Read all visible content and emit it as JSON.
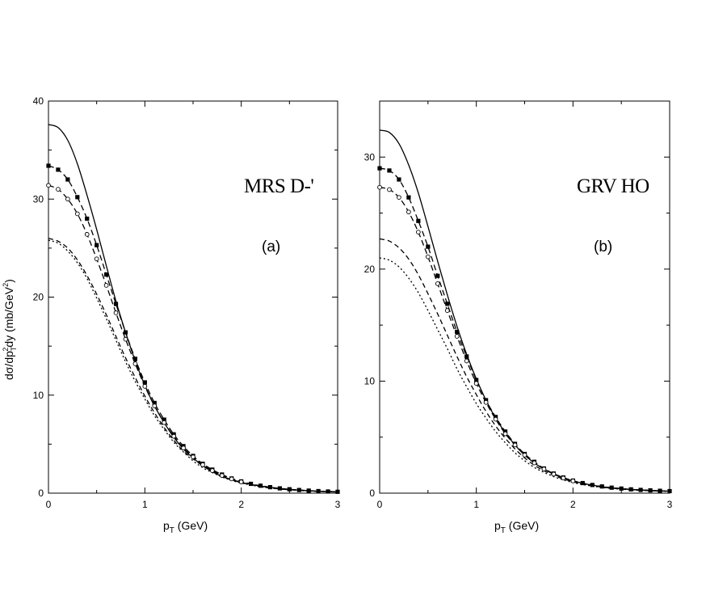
{
  "chart_data": [
    {
      "type": "line",
      "title": "MRS D-'",
      "panel_label": "(a)",
      "xlabel_main": "p",
      "xlabel_sub": "T",
      "xlabel_rest": " (GeV)",
      "ylabel_parts": [
        "dσ/dp",
        "T",
        "2",
        "dy  (mb/GeV",
        "2",
        ")"
      ],
      "xlim": [
        0,
        3
      ],
      "ylim": [
        0,
        40
      ],
      "xticks": [
        0,
        1,
        2,
        3
      ],
      "yticks": [
        0,
        10,
        20,
        30,
        40
      ],
      "x": [
        0,
        0.1,
        0.2,
        0.3,
        0.4,
        0.5,
        0.6,
        0.7,
        0.8,
        0.9,
        1.0,
        1.1,
        1.2,
        1.3,
        1.4,
        1.5,
        1.6,
        1.7,
        1.8,
        1.9,
        2.0,
        2.1,
        2.2,
        2.3,
        2.4,
        2.5,
        2.6,
        2.7,
        2.8,
        2.9,
        3.0
      ],
      "series": [
        {
          "style": "solid",
          "values": [
            37.6,
            37.3,
            36.0,
            33.6,
            30.4,
            26.9,
            23.2,
            19.6,
            16.4,
            13.5,
            11.0,
            8.9,
            7.2,
            5.7,
            4.5,
            3.6,
            2.8,
            2.2,
            1.7,
            1.4,
            1.1,
            0.9,
            0.72,
            0.58,
            0.47,
            0.38,
            0.31,
            0.25,
            0.2,
            0.17,
            0.14
          ]
        },
        {
          "style": "dashed-filled-square",
          "values": [
            33.4,
            33.0,
            32.0,
            30.2,
            28.0,
            25.3,
            22.3,
            19.3,
            16.4,
            13.7,
            11.3,
            9.2,
            7.5,
            6.0,
            4.8,
            3.8,
            3.0,
            2.4,
            1.9,
            1.5,
            1.2,
            0.95,
            0.76,
            0.61,
            0.49,
            0.4,
            0.32,
            0.26,
            0.21,
            0.17,
            0.14
          ]
        },
        {
          "style": "dashed-open-circle",
          "values": [
            31.4,
            31.0,
            30.0,
            28.5,
            26.4,
            23.9,
            21.2,
            18.4,
            15.7,
            13.2,
            10.9,
            8.9,
            7.2,
            5.8,
            4.6,
            3.7,
            2.9,
            2.3,
            1.8,
            1.45,
            1.15,
            0.92,
            0.73,
            0.59,
            0.47,
            0.38,
            0.31,
            0.25,
            0.2,
            0.16,
            0.13
          ]
        },
        {
          "style": "dash",
          "values": [
            26.0,
            25.7,
            25.0,
            23.8,
            22.2,
            20.3,
            18.2,
            16.0,
            13.8,
            11.8,
            9.9,
            8.2,
            6.7,
            5.4,
            4.3,
            3.5,
            2.8,
            2.2,
            1.7,
            1.35,
            1.07,
            0.85,
            0.68,
            0.54,
            0.43,
            0.35,
            0.28,
            0.23,
            0.18,
            0.15,
            0.12
          ]
        },
        {
          "style": "dot",
          "values": [
            25.8,
            25.5,
            24.7,
            23.5,
            21.9,
            19.9,
            17.8,
            15.6,
            13.4,
            11.4,
            9.6,
            7.9,
            6.5,
            5.2,
            4.2,
            3.3,
            2.6,
            2.1,
            1.65,
            1.3,
            1.03,
            0.82,
            0.65,
            0.52,
            0.42,
            0.34,
            0.27,
            0.22,
            0.18,
            0.14,
            0.12
          ]
        }
      ]
    },
    {
      "type": "line",
      "title": "GRV HO",
      "panel_label": "(b)",
      "xlabel_main": "p",
      "xlabel_sub": "T",
      "xlabel_rest": " (GeV)",
      "xlim": [
        0,
        3
      ],
      "ylim": [
        0,
        35
      ],
      "xticks": [
        0,
        1,
        2,
        3
      ],
      "yticks": [
        0,
        10,
        20,
        30
      ],
      "x": [
        0,
        0.1,
        0.2,
        0.3,
        0.4,
        0.5,
        0.6,
        0.7,
        0.8,
        0.9,
        1.0,
        1.1,
        1.2,
        1.3,
        1.4,
        1.5,
        1.6,
        1.7,
        1.8,
        1.9,
        2.0,
        2.1,
        2.2,
        2.3,
        2.4,
        2.5,
        2.6,
        2.7,
        2.8,
        2.9,
        3.0
      ],
      "series": [
        {
          "style": "solid",
          "values": [
            32.4,
            32.2,
            31.2,
            29.3,
            26.8,
            23.8,
            20.7,
            17.7,
            14.9,
            12.4,
            10.2,
            8.3,
            6.7,
            5.4,
            4.3,
            3.4,
            2.7,
            2.15,
            1.7,
            1.35,
            1.1,
            0.88,
            0.71,
            0.58,
            0.48,
            0.4,
            0.33,
            0.28,
            0.24,
            0.21,
            0.18
          ]
        },
        {
          "style": "dashed-filled-square",
          "values": [
            29.0,
            28.8,
            28.0,
            26.4,
            24.3,
            22.0,
            19.4,
            16.9,
            14.4,
            12.2,
            10.1,
            8.3,
            6.8,
            5.5,
            4.4,
            3.5,
            2.8,
            2.2,
            1.75,
            1.4,
            1.12,
            0.9,
            0.73,
            0.6,
            0.49,
            0.41,
            0.34,
            0.29,
            0.25,
            0.21,
            0.18
          ]
        },
        {
          "style": "dashed-open-circle",
          "values": [
            27.3,
            27.1,
            26.4,
            25.1,
            23.3,
            21.1,
            18.7,
            16.3,
            14.0,
            11.8,
            9.8,
            8.1,
            6.6,
            5.3,
            4.3,
            3.4,
            2.7,
            2.15,
            1.7,
            1.35,
            1.09,
            0.88,
            0.71,
            0.58,
            0.48,
            0.4,
            0.33,
            0.28,
            0.24,
            0.2,
            0.17
          ]
        },
        {
          "style": "dash",
          "values": [
            22.7,
            22.5,
            21.9,
            20.9,
            19.5,
            17.8,
            16.0,
            14.1,
            12.2,
            10.4,
            8.8,
            7.3,
            6.0,
            4.9,
            3.95,
            3.15,
            2.5,
            2.0,
            1.6,
            1.27,
            1.02,
            0.82,
            0.66,
            0.54,
            0.45,
            0.37,
            0.31,
            0.26,
            0.22,
            0.19,
            0.16
          ]
        },
        {
          "style": "dot",
          "values": [
            21.0,
            20.8,
            20.2,
            19.2,
            17.9,
            16.3,
            14.6,
            12.9,
            11.1,
            9.5,
            8.0,
            6.7,
            5.5,
            4.5,
            3.6,
            2.9,
            2.3,
            1.85,
            1.48,
            1.18,
            0.95,
            0.77,
            0.62,
            0.51,
            0.42,
            0.35,
            0.29,
            0.25,
            0.21,
            0.18,
            0.16
          ]
        }
      ]
    }
  ]
}
